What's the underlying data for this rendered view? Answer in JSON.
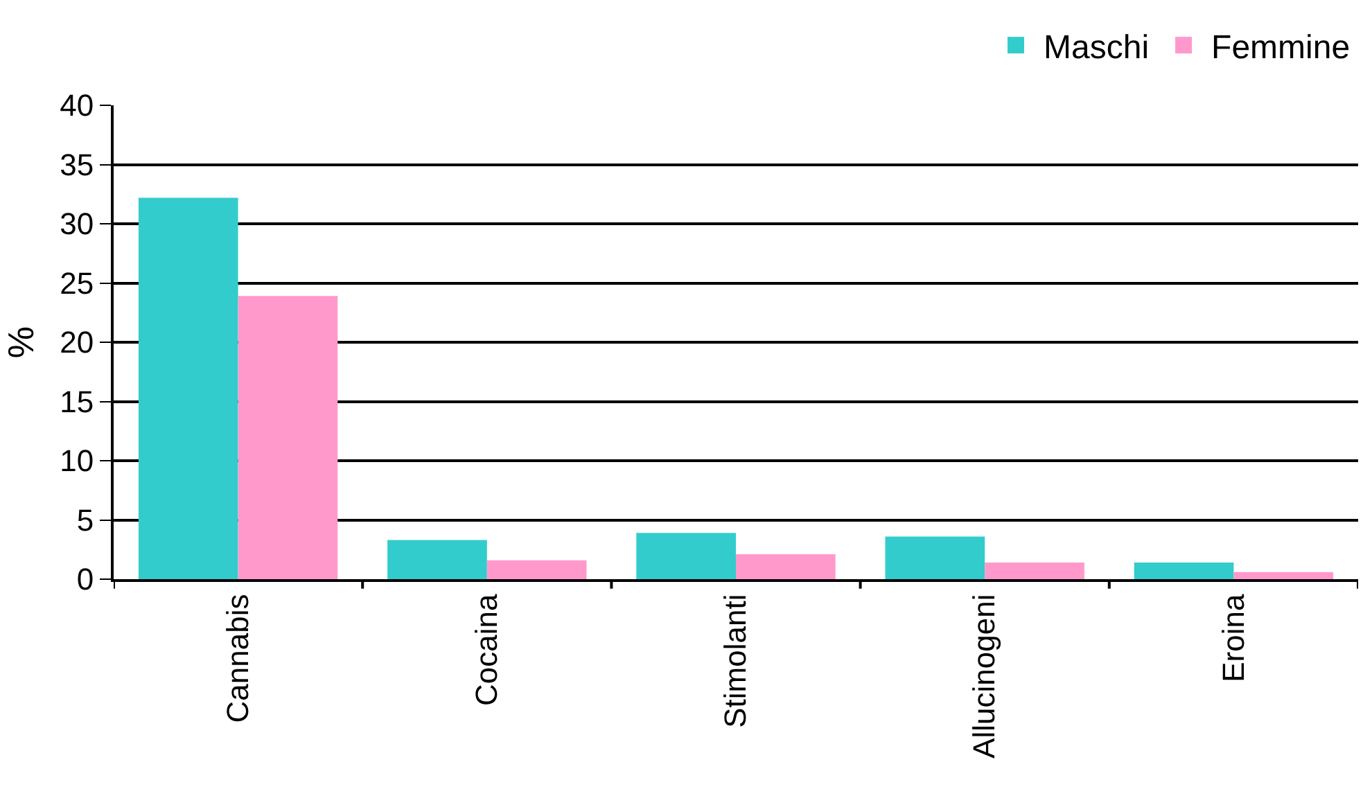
{
  "chart_data": {
    "type": "bar",
    "ylabel": "%",
    "categories": [
      "Cannabis",
      "Cocaina",
      "Stimolanti",
      "Allucinogeni",
      "Eroina"
    ],
    "series": [
      {
        "name": "Maschi",
        "color": "#33cccc",
        "values": [
          32.2,
          3.3,
          3.9,
          3.6,
          1.4
        ]
      },
      {
        "name": "Femmine",
        "color": "#ff99cc",
        "values": [
          23.9,
          1.6,
          2.1,
          1.4,
          0.6
        ]
      }
    ],
    "ylim": [
      0,
      40
    ],
    "yticks": [
      0,
      5,
      10,
      15,
      20,
      25,
      30,
      35,
      40
    ],
    "grid": "y",
    "legend": "top right"
  }
}
